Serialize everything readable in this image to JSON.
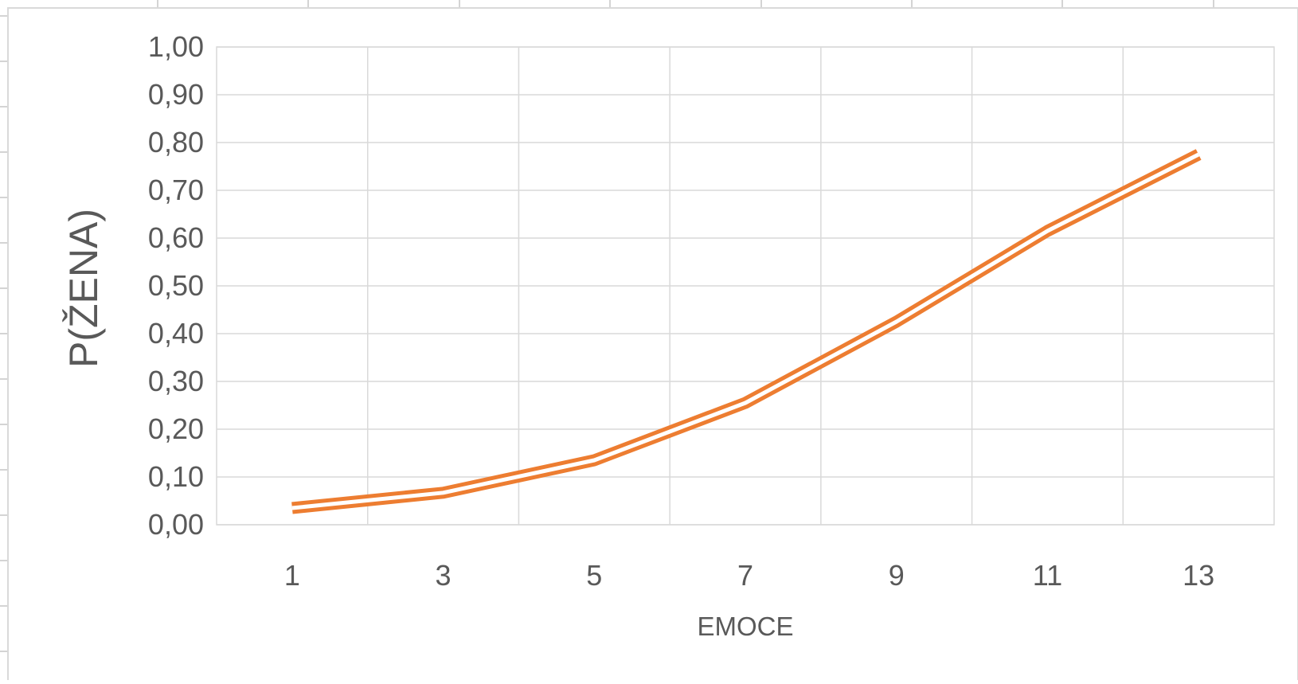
{
  "chart_data": {
    "type": "line",
    "title": "",
    "xlabel": "EMOCE",
    "ylabel": "P(ŽENA)",
    "x": [
      1,
      3,
      5,
      7,
      9,
      11,
      13
    ],
    "x_tick_labels": [
      "1",
      "3",
      "5",
      "7",
      "9",
      "11",
      "13"
    ],
    "y_tick_labels": [
      "0,00",
      "0,10",
      "0,20",
      "0,30",
      "0,40",
      "0,50",
      "0,60",
      "0,70",
      "0,80",
      "0,90",
      "1,00"
    ],
    "ylim": [
      0,
      1
    ],
    "grid": true,
    "legend": "none",
    "series": [
      {
        "values": [
          0.035,
          0.067,
          0.135,
          0.255,
          0.425,
          0.615,
          0.775
        ],
        "color": "#ED7D31",
        "line_style": "double"
      }
    ]
  }
}
